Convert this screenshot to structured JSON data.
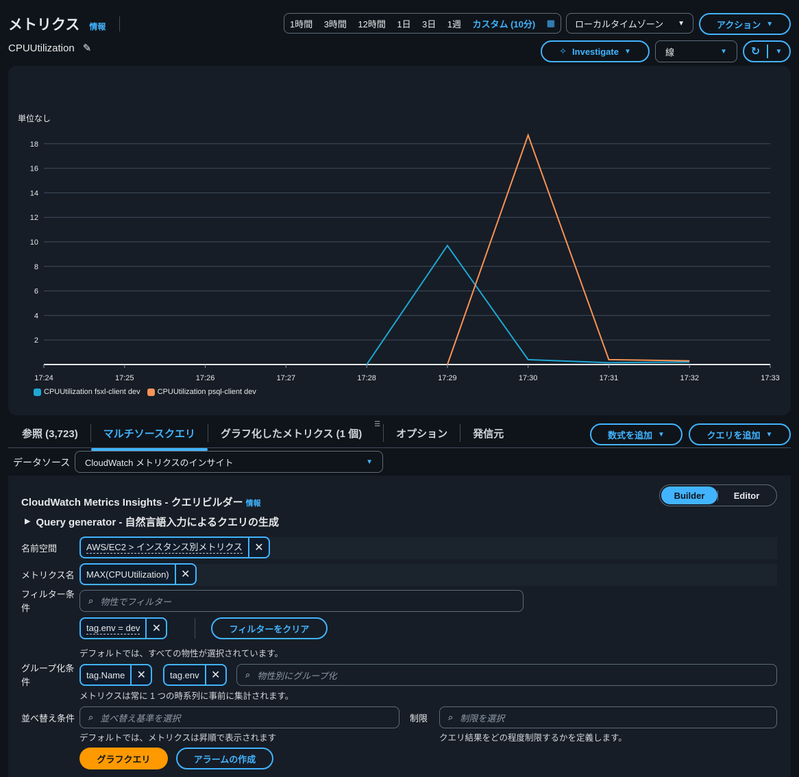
{
  "header": {
    "title": "メトリクス",
    "info": "情報",
    "metric_name": "CPUUtilization"
  },
  "time_range": {
    "options": [
      "1時間",
      "3時間",
      "12時間",
      "1日",
      "3日",
      "1週"
    ],
    "selected": "カスタム (10分)"
  },
  "timezone": "ローカルタイムゾーン",
  "actions": "アクション",
  "investigate": "Investigate",
  "chart_type": "線",
  "chart_data": {
    "type": "line",
    "ylabel": "単位なし",
    "x": [
      "17:24",
      "17:25",
      "17:26",
      "17:27",
      "17:28",
      "17:29",
      "17:30",
      "17:31",
      "17:32",
      "17:33"
    ],
    "yticks": [
      2,
      4,
      6,
      8,
      10,
      12,
      14,
      16,
      18
    ],
    "ylim": [
      0,
      19.5
    ],
    "grid": true,
    "legend_position": "bottom-left",
    "series": [
      {
        "name": "CPUUtilization fsxl-client dev",
        "color": "#1ea7d4",
        "points": [
          [
            "17:28",
            0
          ],
          [
            "17:29",
            9.7
          ],
          [
            "17:30",
            0.4
          ],
          [
            "17:31",
            0.15
          ],
          [
            "17:32",
            0.2
          ]
        ]
      },
      {
        "name": "CPUUtilization psql-client dev",
        "color": "#f89256",
        "points": [
          [
            "17:29",
            0
          ],
          [
            "17:30",
            18.7
          ],
          [
            "17:31",
            0.4
          ],
          [
            "17:32",
            0.3
          ]
        ]
      }
    ]
  },
  "tabs": [
    {
      "label": "参照 (3,723)"
    },
    {
      "label": "マルチソースクエリ",
      "active": true
    },
    {
      "label": "グラフ化したメトリクス (1 個)"
    },
    {
      "label": "オプション"
    },
    {
      "label": "発信元"
    }
  ],
  "add_math": "数式を追加",
  "add_query": "クエリを追加",
  "datasource": {
    "label": "データソース",
    "value": "CloudWatch メトリクスのインサイト"
  },
  "builder": {
    "title": "CloudWatch Metrics Insights - クエリビルダー",
    "info": "情報",
    "modes": [
      "Builder",
      "Editor"
    ],
    "generator": "Query generator - 自然言語入力によるクエリの生成",
    "namespace": {
      "label": "名前空間",
      "token": "AWS/EC2 > インスタンス別メトリクス"
    },
    "metric": {
      "label": "メトリクス名",
      "token": "MAX(CPUUtilization)"
    },
    "filter": {
      "label": "フィルター条件",
      "placeholder": "物性でフィルター",
      "token": "tag.env = dev",
      "clear": "フィルターをクリア",
      "help": "デフォルトでは、すべての物性が選択されています。"
    },
    "group": {
      "label": "グループ化条件",
      "tokens": [
        "tag.Name",
        "tag.env"
      ],
      "placeholder": "物性別にグループ化",
      "help": "メトリクスは常に 1 つの時系列に事前に集計されます。"
    },
    "order": {
      "label": "並べ替え条件",
      "placeholder": "並べ替え基準を選択",
      "help": "デフォルトでは、メトリクスは昇順で表示されます"
    },
    "limit": {
      "label": "制限",
      "placeholder": "制限を選択",
      "help": "クエリ結果をどの程度制限するかを定義します。"
    },
    "graph_query": "グラフクエリ",
    "create_alarm": "アラームの作成"
  }
}
